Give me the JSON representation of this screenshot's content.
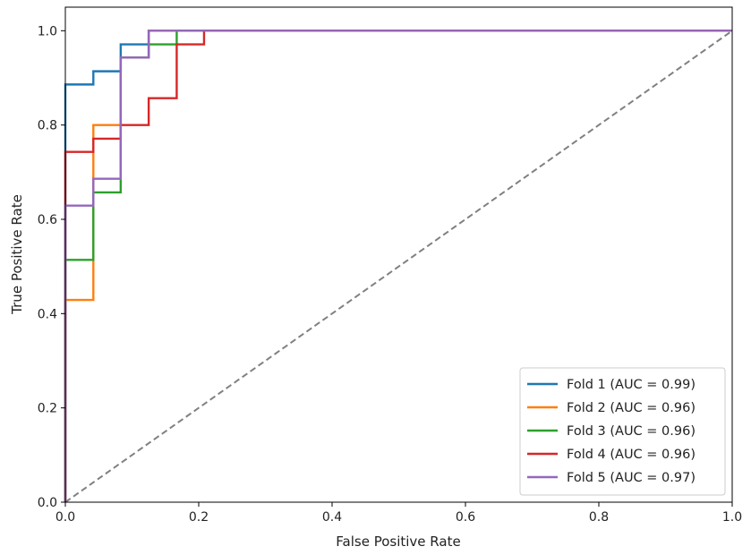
{
  "chart_data": {
    "type": "line",
    "title": "",
    "xlabel": "False Positive Rate",
    "ylabel": "True Positive Rate",
    "xlim": [
      0.0,
      1.0
    ],
    "ylim": [
      0.0,
      1.05
    ],
    "xticks": [
      "0.0",
      "0.2",
      "0.4",
      "0.6",
      "0.8",
      "1.0"
    ],
    "yticks": [
      "0.0",
      "0.2",
      "0.4",
      "0.6",
      "0.8",
      "1.0"
    ],
    "legend_position": "lower-right",
    "chance_line": {
      "x": [
        0.0,
        1.0
      ],
      "y": [
        0.0,
        1.0
      ],
      "color": "#808080",
      "style": "dashed"
    },
    "series": [
      {
        "name": "Fold 1 (AUC = 0.99)",
        "color": "#1f77b4",
        "x": [
          0.0,
          0.0,
          0.0,
          0.042,
          0.042,
          0.083,
          0.083,
          0.125,
          0.125,
          1.0
        ],
        "y": [
          0.0,
          0.029,
          0.886,
          0.886,
          0.914,
          0.914,
          0.971,
          0.971,
          1.0,
          1.0
        ]
      },
      {
        "name": "Fold 2 (AUC = 0.96)",
        "color": "#ff7f0e",
        "x": [
          0.0,
          0.0,
          0.0,
          0.042,
          0.042,
          0.083,
          0.083,
          0.125,
          0.125,
          1.0
        ],
        "y": [
          0.0,
          0.029,
          0.429,
          0.429,
          0.8,
          0.8,
          0.943,
          0.943,
          1.0,
          1.0
        ]
      },
      {
        "name": "Fold 3 (AUC = 0.96)",
        "color": "#2ca02c",
        "x": [
          0.0,
          0.0,
          0.0,
          0.042,
          0.042,
          0.083,
          0.083,
          0.125,
          0.125,
          0.167,
          0.167,
          1.0
        ],
        "y": [
          0.0,
          0.029,
          0.514,
          0.514,
          0.657,
          0.657,
          0.943,
          0.943,
          0.971,
          0.971,
          1.0,
          1.0
        ]
      },
      {
        "name": "Fold 4 (AUC = 0.96)",
        "color": "#d62728",
        "x": [
          0.0,
          0.0,
          0.0,
          0.042,
          0.042,
          0.083,
          0.083,
          0.125,
          0.125,
          0.167,
          0.167,
          0.208,
          0.208,
          1.0
        ],
        "y": [
          0.0,
          0.029,
          0.743,
          0.743,
          0.771,
          0.771,
          0.8,
          0.8,
          0.857,
          0.857,
          0.971,
          0.971,
          1.0,
          1.0
        ]
      },
      {
        "name": "Fold 5 (AUC = 0.97)",
        "color": "#9467bd",
        "x": [
          0.0,
          0.0,
          0.0,
          0.042,
          0.042,
          0.083,
          0.083,
          0.125,
          0.125,
          1.0
        ],
        "y": [
          0.0,
          0.029,
          0.629,
          0.629,
          0.686,
          0.686,
          0.943,
          0.943,
          1.0,
          1.0
        ]
      }
    ]
  }
}
